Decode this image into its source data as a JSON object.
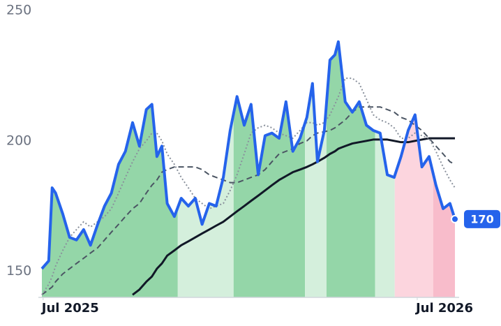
{
  "chart_data": {
    "type": "line",
    "x": [
      -0.04,
      0.18,
      0.29,
      0.4,
      0.63,
      0.85,
      1.07,
      1.3,
      1.52,
      1.75,
      1.97,
      2.19,
      2.42,
      2.64,
      2.87,
      3.09,
      3.31,
      3.49,
      3.65,
      3.81,
      3.98,
      4.21,
      4.43,
      4.66,
      4.88,
      5.1,
      5.33,
      5.55,
      5.78,
      6.0,
      6.22,
      6.45,
      6.67,
      6.9,
      7.12,
      7.34,
      7.57,
      7.79,
      8.01,
      8.24,
      8.46,
      8.64,
      8.8,
      9.02,
      9.2,
      9.36,
      9.47,
      9.69,
      9.92,
      10.14,
      10.37,
      10.59,
      10.81,
      11.04,
      11.26,
      11.48,
      11.71,
      11.93,
      12.15,
      12.38,
      12.6,
      12.83,
      13.05,
      13.21
    ],
    "series": [
      {
        "color": "#2563eb",
        "values": [
          151,
          154,
          182,
          180,
          172,
          163,
          162,
          166,
          160,
          168,
          175,
          180,
          191,
          196,
          207,
          198,
          212,
          214,
          194,
          198,
          176,
          171,
          178,
          175,
          178,
          168,
          176,
          175,
          186,
          204,
          217,
          206,
          214,
          187,
          202,
          203,
          201,
          215,
          196,
          201,
          209,
          222,
          192,
          204,
          231,
          233,
          238,
          215,
          211,
          215,
          206,
          204,
          203,
          187,
          186,
          194,
          204,
          210,
          190,
          194,
          183,
          174,
          176,
          170
        ]
      },
      {
        "color": "#8a919c",
        "dash": "2 3",
        "values": [
          141,
          145,
          148,
          152,
          158,
          163,
          166,
          169,
          167,
          169,
          171,
          174,
          180,
          186,
          192,
          197,
          200,
          203,
          203,
          200,
          195,
          191,
          186,
          182,
          178,
          176,
          174,
          175,
          176,
          181,
          187,
          195,
          203,
          205,
          206,
          205,
          203,
          202,
          201,
          204,
          207,
          207,
          206,
          207,
          210,
          214,
          217,
          224,
          224,
          222,
          216,
          210,
          208,
          207,
          205,
          201,
          201,
          203,
          202,
          201,
          196,
          190,
          185,
          182
        ]
      },
      {
        "color": "#4b5563",
        "dash": "8 5",
        "values": [
          141,
          143,
          144,
          146,
          149,
          151,
          153,
          155,
          157,
          159,
          162,
          165,
          168,
          171,
          174,
          176,
          180,
          183,
          185,
          188,
          189,
          190,
          190,
          190,
          190,
          189,
          187,
          186,
          185,
          184,
          184,
          185,
          186,
          187,
          189,
          192,
          195,
          196,
          197,
          199,
          200,
          202,
          203,
          203.5,
          204,
          205,
          206,
          208,
          211,
          213,
          213,
          213,
          213,
          212,
          211,
          209,
          208,
          206,
          204,
          201,
          198,
          195,
          192,
          191
        ]
      },
      {
        "color": "#111827",
        "values": [
          null,
          null,
          null,
          null,
          null,
          null,
          null,
          null,
          null,
          null,
          null,
          null,
          null,
          null,
          141,
          143,
          146,
          148,
          151,
          153,
          156,
          158,
          160,
          161.5,
          163,
          164.5,
          166,
          167.5,
          169,
          171,
          173,
          175,
          177,
          179,
          181,
          183,
          185,
          186.5,
          188,
          189,
          190,
          191,
          192,
          193.5,
          195,
          196,
          197,
          198,
          199,
          199.5,
          200,
          200.5,
          200.5,
          200.5,
          200,
          199.5,
          199.5,
          200,
          200.5,
          201,
          201,
          201,
          201,
          201
        ]
      }
    ],
    "regions": [
      {
        "start": -0.04,
        "end": 4.32,
        "color": "#94d6a8"
      },
      {
        "start": 4.32,
        "end": 6.11,
        "color": "#d4efdc"
      },
      {
        "start": 6.11,
        "end": 8.4,
        "color": "#94d6a8"
      },
      {
        "start": 8.4,
        "end": 9.09,
        "color": "#d4efdc"
      },
      {
        "start": 9.09,
        "end": 10.65,
        "color": "#94d6a8"
      },
      {
        "start": 10.65,
        "end": 11.28,
        "color": "#d4efdc"
      },
      {
        "start": 11.28,
        "end": 12.51,
        "color": "#fcd5de"
      },
      {
        "start": 12.51,
        "end": 13.21,
        "color": "#f8bccb"
      }
    ],
    "xlim": [
      -0.04,
      13.21
    ],
    "xticks": [
      {
        "value": 0,
        "label": "Jul 2025"
      },
      {
        "value": 12,
        "label": "Jul 2026"
      }
    ],
    "ylim": [
      140,
      252
    ],
    "yticks": [
      150,
      200,
      250
    ]
  }
}
